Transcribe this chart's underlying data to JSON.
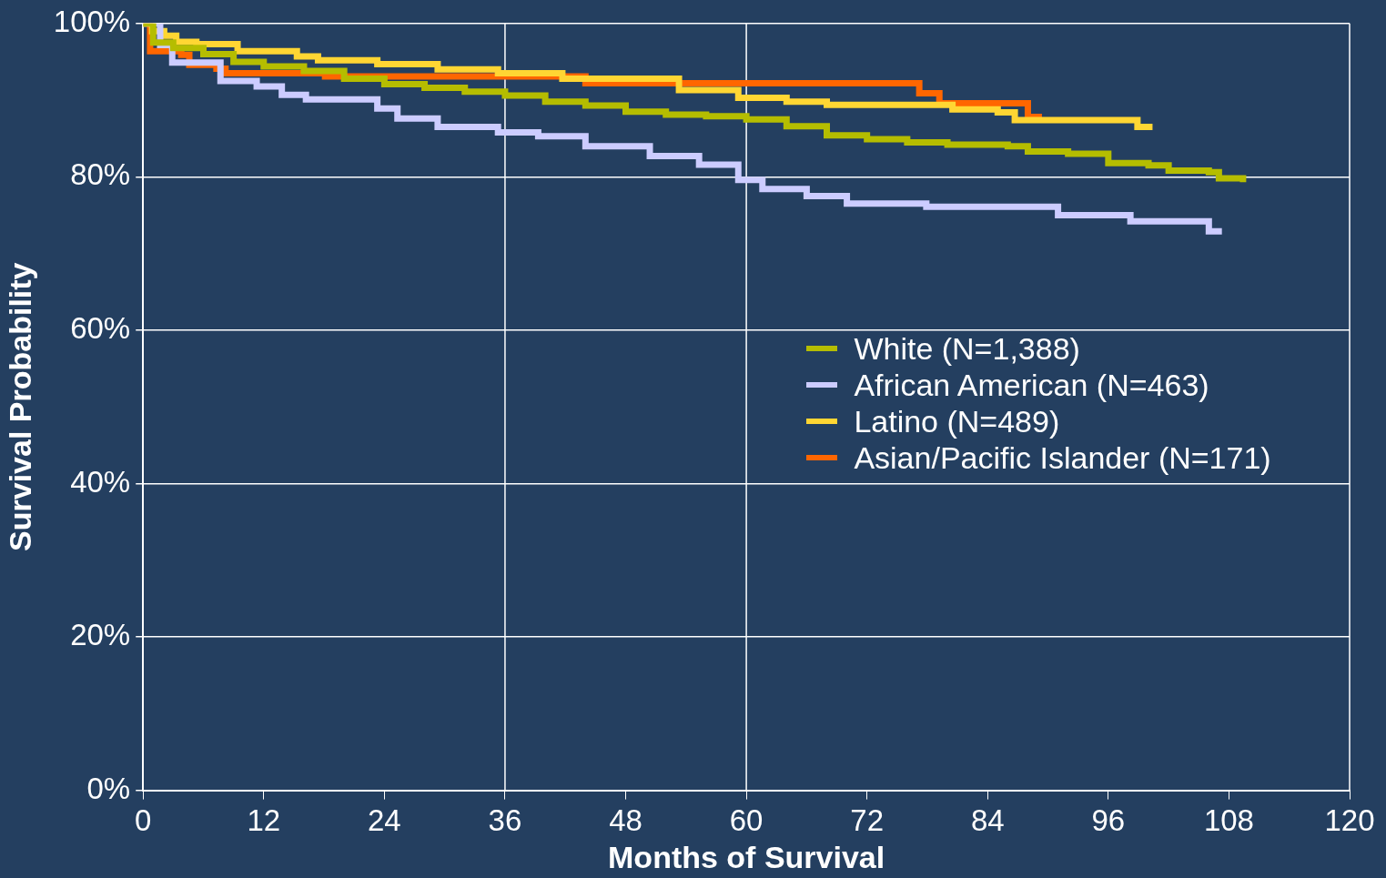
{
  "chart_data": {
    "type": "step",
    "xlabel": "Months of Survival",
    "ylabel": "Survival Probability",
    "xlim": [
      0,
      120
    ],
    "xticks": [
      0,
      12,
      24,
      36,
      48,
      60,
      72,
      84,
      96,
      108,
      120
    ],
    "ylim": [
      0,
      100
    ],
    "yticks": [
      {
        "value": 0,
        "label": "0%"
      },
      {
        "value": 20,
        "label": "20%"
      },
      {
        "value": 40,
        "label": "40%"
      },
      {
        "value": 60,
        "label": "60%"
      },
      {
        "value": 80,
        "label": "80%"
      },
      {
        "value": 100,
        "label": "100%"
      }
    ],
    "grid": "y",
    "legend": "right",
    "marker": "none",
    "line_style": "solid",
    "ref_lines": [
      {
        "axis": "x",
        "value": 36,
        "color": "#ffffff"
      },
      {
        "axis": "x",
        "value": 60,
        "color": "#ffffff"
      }
    ],
    "series": [
      {
        "name": "White (N=1,388)",
        "color": "#b5bd00",
        "x": [
          0,
          1,
          3,
          6,
          9,
          12,
          16,
          20,
          24,
          28,
          32,
          36,
          40,
          44,
          48,
          52,
          56,
          60,
          64,
          68,
          72,
          76,
          80,
          86,
          88,
          92,
          96,
          100,
          102,
          106,
          107,
          109.4
        ],
        "values": [
          100,
          97.5,
          96.8,
          96,
          95,
          94.4,
          93.8,
          92.8,
          92.1,
          91.6,
          91.1,
          90.6,
          89.8,
          89.3,
          88.5,
          88.1,
          87.9,
          87.5,
          86.6,
          85.4,
          84.9,
          84.5,
          84.2,
          84,
          83.3,
          83,
          81.8,
          81.5,
          80.8,
          80.6,
          79.8,
          79.3
        ]
      },
      {
        "name": "African American (N=463)",
        "color": "#ccccff",
        "x": [
          0,
          1.7,
          2.9,
          7.7,
          11.3,
          13.8,
          16.2,
          23.3,
          25.3,
          29.3,
          35.3,
          39.3,
          44,
          50.4,
          55.3,
          59.2,
          61.6,
          66,
          70,
          77.9,
          91,
          98.2,
          106,
          107.3
        ],
        "values": [
          100,
          97.2,
          94.9,
          92.5,
          91.8,
          90.7,
          90.1,
          88.9,
          87.6,
          86.5,
          85.8,
          85.3,
          84,
          82.7,
          81.6,
          79.6,
          78.4,
          77.5,
          76.5,
          76.1,
          75,
          74.2,
          72.9,
          72.9
        ]
      },
      {
        "name": "Latino (N=489)",
        "color": "#ffd633",
        "x": [
          0,
          0.9,
          2.1,
          3.3,
          5.3,
          9.4,
          15.3,
          17.4,
          23.3,
          29.3,
          35.3,
          41.7,
          53.3,
          59.2,
          64,
          68,
          80.5,
          85,
          86.7,
          98.9,
          100.4
        ],
        "values": [
          100,
          99,
          98.4,
          97.6,
          97.3,
          96.4,
          95.7,
          95.2,
          94.7,
          94,
          93.5,
          92.8,
          91.3,
          90.3,
          89.8,
          89.4,
          88.8,
          88.4,
          87.4,
          86.5,
          86.5
        ]
      },
      {
        "name": "Asian/Pacific Islander (N=171)",
        "color": "#ff6600",
        "x": [
          0,
          0.7,
          3.8,
          4.6,
          7.3,
          8.2,
          18.1,
          44,
          77.2,
          79.2,
          88,
          89.4
        ],
        "values": [
          100,
          96.4,
          95.9,
          94.6,
          94.1,
          93.5,
          93.1,
          92.2,
          90.9,
          89.6,
          87.8,
          87.8
        ]
      }
    ]
  }
}
